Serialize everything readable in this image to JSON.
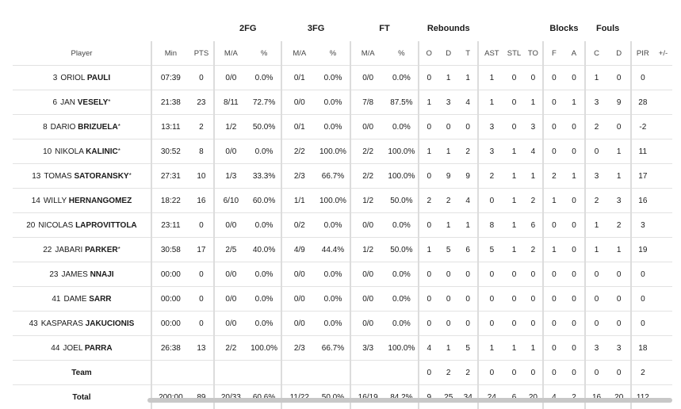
{
  "groups": {
    "twofg": "2FG",
    "threefg": "3FG",
    "ft": "FT",
    "rebounds": "Rebounds",
    "blocks": "Blocks",
    "fouls": "Fouls"
  },
  "headers": {
    "player": "Player",
    "min": "Min",
    "pts": "PTS",
    "twofg_ma": "M/A",
    "twofg_pct": "%",
    "threefg_ma": "M/A",
    "threefg_pct": "%",
    "ft_ma": "M/A",
    "ft_pct": "%",
    "reb_o": "O",
    "reb_d": "D",
    "reb_t": "T",
    "ast": "AST",
    "stl": "STL",
    "to": "TO",
    "blk_f": "F",
    "blk_a": "A",
    "foul_c": "C",
    "foul_d": "D",
    "pir": "PIR",
    "pm": "+/-"
  },
  "players": [
    {
      "number": "3",
      "first": "ORIOL",
      "last": "PAULI",
      "star": "",
      "min": "07:39",
      "pts": "0",
      "twofg_ma": "0/0",
      "twofg_pct": "0.0%",
      "threefg_ma": "0/1",
      "threefg_pct": "0.0%",
      "ft_ma": "0/0",
      "ft_pct": "0.0%",
      "reb_o": "0",
      "reb_d": "1",
      "reb_t": "1",
      "ast": "1",
      "stl": "0",
      "to": "0",
      "blk_f": "0",
      "blk_a": "0",
      "foul_c": "1",
      "foul_d": "0",
      "pir": "0",
      "pm": ""
    },
    {
      "number": "6",
      "first": "JAN",
      "last": "VESELY",
      "star": "*",
      "min": "21:38",
      "pts": "23",
      "twofg_ma": "8/11",
      "twofg_pct": "72.7%",
      "threefg_ma": "0/0",
      "threefg_pct": "0.0%",
      "ft_ma": "7/8",
      "ft_pct": "87.5%",
      "reb_o": "1",
      "reb_d": "3",
      "reb_t": "4",
      "ast": "1",
      "stl": "0",
      "to": "1",
      "blk_f": "0",
      "blk_a": "1",
      "foul_c": "3",
      "foul_d": "9",
      "pir": "28",
      "pm": ""
    },
    {
      "number": "8",
      "first": "DARIO",
      "last": "BRIZUELA",
      "star": "*",
      "min": "13:11",
      "pts": "2",
      "twofg_ma": "1/2",
      "twofg_pct": "50.0%",
      "threefg_ma": "0/1",
      "threefg_pct": "0.0%",
      "ft_ma": "0/0",
      "ft_pct": "0.0%",
      "reb_o": "0",
      "reb_d": "0",
      "reb_t": "0",
      "ast": "3",
      "stl": "0",
      "to": "3",
      "blk_f": "0",
      "blk_a": "0",
      "foul_c": "2",
      "foul_d": "0",
      "pir": "-2",
      "pm": ""
    },
    {
      "number": "10",
      "first": "NIKOLA",
      "last": "KALINIC",
      "star": "*",
      "min": "30:52",
      "pts": "8",
      "twofg_ma": "0/0",
      "twofg_pct": "0.0%",
      "threefg_ma": "2/2",
      "threefg_pct": "100.0%",
      "ft_ma": "2/2",
      "ft_pct": "100.0%",
      "reb_o": "1",
      "reb_d": "1",
      "reb_t": "2",
      "ast": "3",
      "stl": "1",
      "to": "4",
      "blk_f": "0",
      "blk_a": "0",
      "foul_c": "0",
      "foul_d": "1",
      "pir": "11",
      "pm": ""
    },
    {
      "number": "13",
      "first": "TOMAS",
      "last": "SATORANSKY",
      "star": "*",
      "min": "27:31",
      "pts": "10",
      "twofg_ma": "1/3",
      "twofg_pct": "33.3%",
      "threefg_ma": "2/3",
      "threefg_pct": "66.7%",
      "ft_ma": "2/2",
      "ft_pct": "100.0%",
      "reb_o": "0",
      "reb_d": "9",
      "reb_t": "9",
      "ast": "2",
      "stl": "1",
      "to": "1",
      "blk_f": "2",
      "blk_a": "1",
      "foul_c": "3",
      "foul_d": "1",
      "pir": "17",
      "pm": ""
    },
    {
      "number": "14",
      "first": "WILLY",
      "last": "HERNANGOMEZ",
      "star": "",
      "min": "18:22",
      "pts": "16",
      "twofg_ma": "6/10",
      "twofg_pct": "60.0%",
      "threefg_ma": "1/1",
      "threefg_pct": "100.0%",
      "ft_ma": "1/2",
      "ft_pct": "50.0%",
      "reb_o": "2",
      "reb_d": "2",
      "reb_t": "4",
      "ast": "0",
      "stl": "1",
      "to": "2",
      "blk_f": "1",
      "blk_a": "0",
      "foul_c": "2",
      "foul_d": "3",
      "pir": "16",
      "pm": ""
    },
    {
      "number": "20",
      "first": "NICOLAS",
      "last": "LAPROVITTOLA",
      "star": "",
      "min": "23:11",
      "pts": "0",
      "twofg_ma": "0/0",
      "twofg_pct": "0.0%",
      "threefg_ma": "0/2",
      "threefg_pct": "0.0%",
      "ft_ma": "0/0",
      "ft_pct": "0.0%",
      "reb_o": "0",
      "reb_d": "1",
      "reb_t": "1",
      "ast": "8",
      "stl": "1",
      "to": "6",
      "blk_f": "0",
      "blk_a": "0",
      "foul_c": "1",
      "foul_d": "2",
      "pir": "3",
      "pm": ""
    },
    {
      "number": "22",
      "first": "JABARI",
      "last": "PARKER",
      "star": "*",
      "min": "30:58",
      "pts": "17",
      "twofg_ma": "2/5",
      "twofg_pct": "40.0%",
      "threefg_ma": "4/9",
      "threefg_pct": "44.4%",
      "ft_ma": "1/2",
      "ft_pct": "50.0%",
      "reb_o": "1",
      "reb_d": "5",
      "reb_t": "6",
      "ast": "5",
      "stl": "1",
      "to": "2",
      "blk_f": "1",
      "blk_a": "0",
      "foul_c": "1",
      "foul_d": "1",
      "pir": "19",
      "pm": ""
    },
    {
      "number": "23",
      "first": "JAMES",
      "last": "NNAJI",
      "star": "",
      "min": "00:00",
      "pts": "0",
      "twofg_ma": "0/0",
      "twofg_pct": "0.0%",
      "threefg_ma": "0/0",
      "threefg_pct": "0.0%",
      "ft_ma": "0/0",
      "ft_pct": "0.0%",
      "reb_o": "0",
      "reb_d": "0",
      "reb_t": "0",
      "ast": "0",
      "stl": "0",
      "to": "0",
      "blk_f": "0",
      "blk_a": "0",
      "foul_c": "0",
      "foul_d": "0",
      "pir": "0",
      "pm": ""
    },
    {
      "number": "41",
      "first": "DAME",
      "last": "SARR",
      "star": "",
      "min": "00:00",
      "pts": "0",
      "twofg_ma": "0/0",
      "twofg_pct": "0.0%",
      "threefg_ma": "0/0",
      "threefg_pct": "0.0%",
      "ft_ma": "0/0",
      "ft_pct": "0.0%",
      "reb_o": "0",
      "reb_d": "0",
      "reb_t": "0",
      "ast": "0",
      "stl": "0",
      "to": "0",
      "blk_f": "0",
      "blk_a": "0",
      "foul_c": "0",
      "foul_d": "0",
      "pir": "0",
      "pm": ""
    },
    {
      "number": "43",
      "first": "KASPARAS",
      "last": "JAKUCIONIS",
      "star": "",
      "min": "00:00",
      "pts": "0",
      "twofg_ma": "0/0",
      "twofg_pct": "0.0%",
      "threefg_ma": "0/0",
      "threefg_pct": "0.0%",
      "ft_ma": "0/0",
      "ft_pct": "0.0%",
      "reb_o": "0",
      "reb_d": "0",
      "reb_t": "0",
      "ast": "0",
      "stl": "0",
      "to": "0",
      "blk_f": "0",
      "blk_a": "0",
      "foul_c": "0",
      "foul_d": "0",
      "pir": "0",
      "pm": ""
    },
    {
      "number": "44",
      "first": "JOEL",
      "last": "PARRA",
      "star": "",
      "min": "26:38",
      "pts": "13",
      "twofg_ma": "2/2",
      "twofg_pct": "100.0%",
      "threefg_ma": "2/3",
      "threefg_pct": "66.7%",
      "ft_ma": "3/3",
      "ft_pct": "100.0%",
      "reb_o": "4",
      "reb_d": "1",
      "reb_t": "5",
      "ast": "1",
      "stl": "1",
      "to": "1",
      "blk_f": "0",
      "blk_a": "0",
      "foul_c": "3",
      "foul_d": "3",
      "pir": "18",
      "pm": ""
    }
  ],
  "team": {
    "label": "Team",
    "min": "",
    "pts": "",
    "twofg_ma": "",
    "twofg_pct": "",
    "threefg_ma": "",
    "threefg_pct": "",
    "ft_ma": "",
    "ft_pct": "",
    "reb_o": "0",
    "reb_d": "2",
    "reb_t": "2",
    "ast": "0",
    "stl": "0",
    "to": "0",
    "blk_f": "0",
    "blk_a": "0",
    "foul_c": "0",
    "foul_d": "0",
    "pir": "2",
    "pm": ""
  },
  "total": {
    "label": "Total",
    "min": "200:00",
    "pts": "89",
    "twofg_ma": "20/33",
    "twofg_pct": "60.6%",
    "threefg_ma": "11/22",
    "threefg_pct": "50.0%",
    "ft_ma": "16/19",
    "ft_pct": "84.2%",
    "reb_o": "9",
    "reb_d": "25",
    "reb_t": "34",
    "ast": "24",
    "stl": "6",
    "to": "20",
    "blk_f": "4",
    "blk_a": "2",
    "foul_c": "16",
    "foul_d": "20",
    "pir": "112",
    "pm": ""
  }
}
